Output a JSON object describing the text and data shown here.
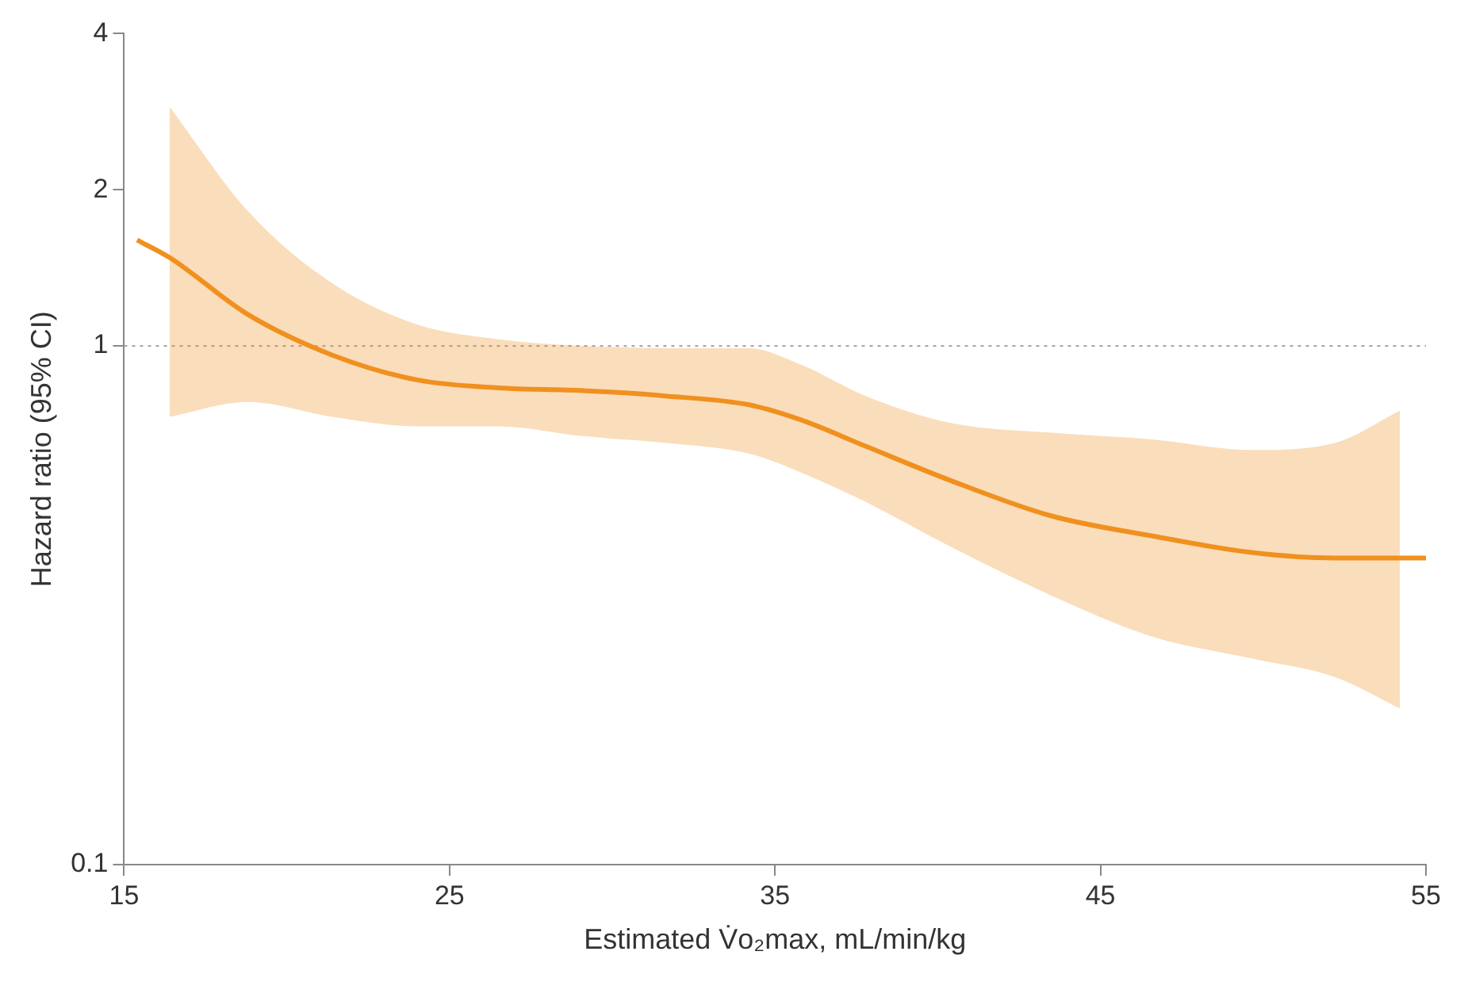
{
  "chart_data": {
    "type": "line",
    "xlabel": "Estimated V̇o₂max, mL/min/kg",
    "ylabel": "Hazard ratio (95% CI)",
    "x": [
      15.4,
      16.4,
      18.8,
      21.4,
      24,
      26.5,
      29.1,
      31.7,
      34.2,
      35.8,
      37.8,
      40.4,
      43.5,
      46.6,
      49.6,
      52.2,
      54.2,
      55
    ],
    "series": [
      {
        "color": "#f0901e",
        "values": [
          1.6,
          1.48,
          1.15,
          0.96,
          0.86,
          0.83,
          0.82,
          0.8,
          0.77,
          0.72,
          0.64,
          0.55,
          0.47,
          0.43,
          0.4,
          0.39,
          0.39,
          0.39
        ],
        "lower": [
          null,
          0.73,
          0.78,
          0.73,
          0.7,
          0.7,
          0.67,
          0.65,
          0.62,
          0.57,
          0.5,
          0.41,
          0.33,
          0.275,
          0.25,
          0.23,
          0.2,
          null
        ],
        "upper": [
          null,
          2.89,
          1.82,
          1.32,
          1.1,
          1.03,
          1.0,
          0.99,
          0.99,
          0.92,
          0.8,
          0.71,
          0.68,
          0.66,
          0.63,
          0.65,
          0.75,
          null
        ]
      }
    ],
    "xlim": [
      15,
      55
    ],
    "xticks": [
      15,
      25,
      35,
      45,
      55
    ],
    "ylim": [
      0.1,
      4
    ],
    "yticks": [
      0.1,
      1,
      2,
      4
    ],
    "log": "y",
    "grid": false,
    "legend": false,
    "marker": "none",
    "line_style": "solid",
    "ref_lines": [
      {
        "axis": "y",
        "value": 1,
        "color": "#aaaaaa",
        "line_style": "dotted"
      }
    ]
  }
}
